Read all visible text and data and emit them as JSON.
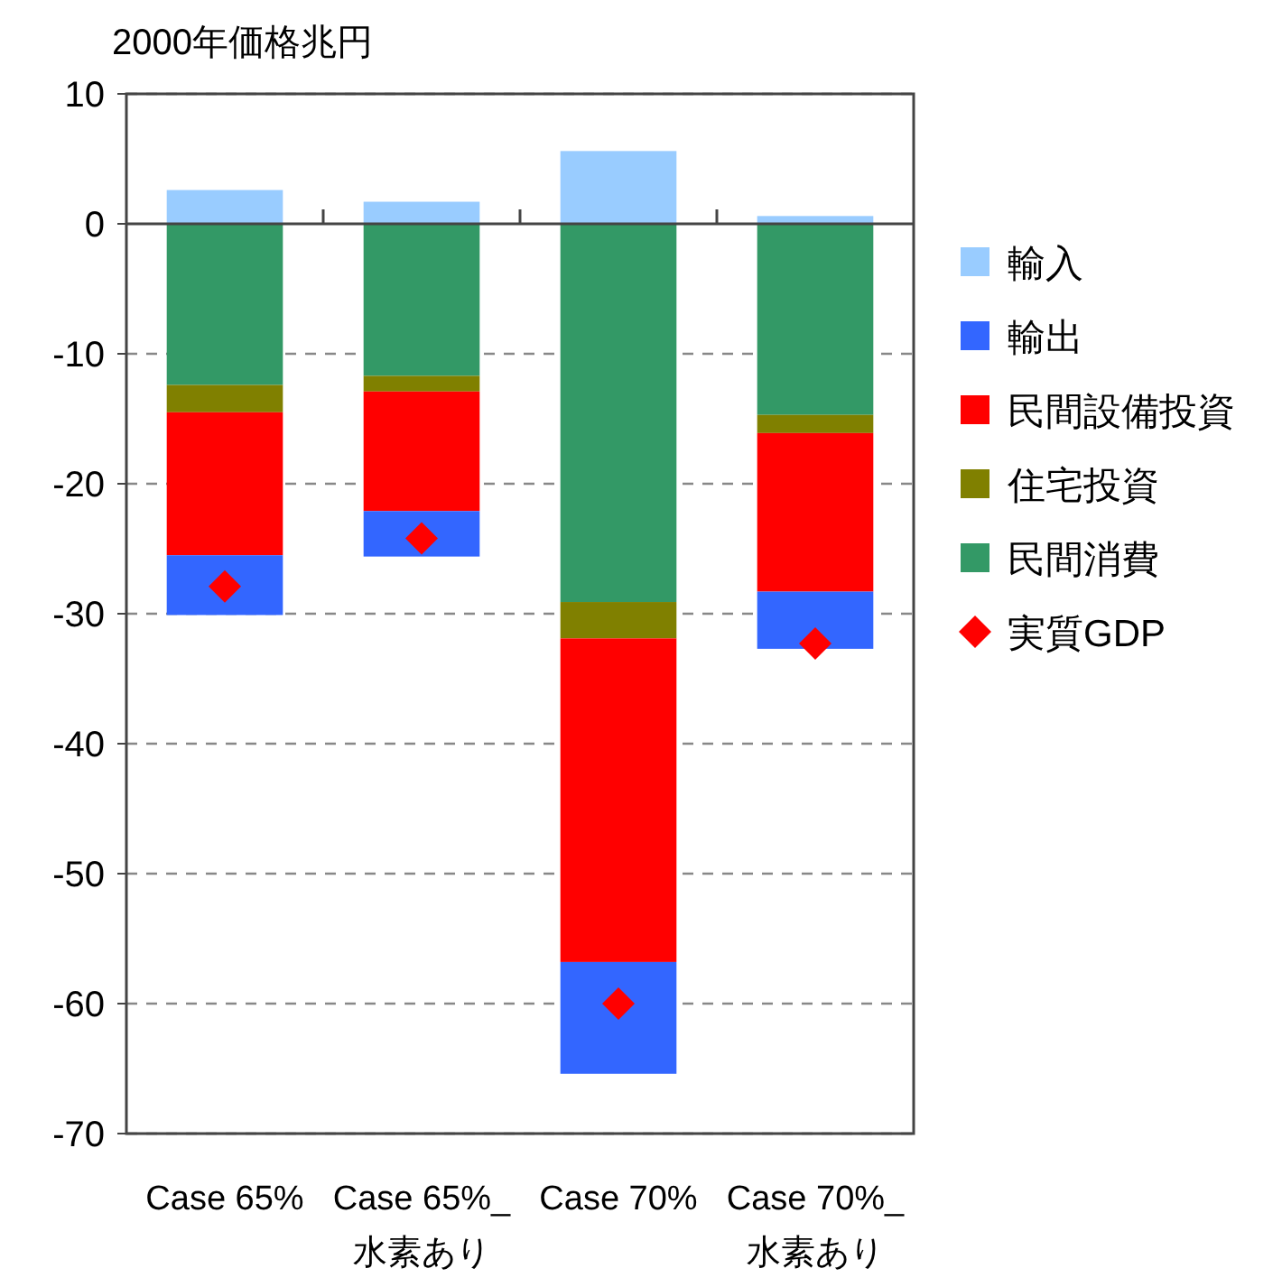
{
  "chart_data": {
    "type": "bar",
    "stacked": true,
    "ylabel": "2000年価格兆円",
    "categories": [
      "Case 65%",
      "Case 65%_\n水素あり",
      "Case 70%",
      "Case 70%_\n水素あり"
    ],
    "series": [
      {
        "name": "民間消費",
        "color": "#339966",
        "values": [
          -12.4,
          -11.7,
          -29.1,
          -14.7
        ]
      },
      {
        "name": "住宅投資",
        "color": "#808000",
        "values": [
          -2.1,
          -1.2,
          -2.8,
          -1.4
        ]
      },
      {
        "name": "民間設備投資",
        "color": "#ff0000",
        "values": [
          -11.0,
          -9.2,
          -24.9,
          -12.2
        ]
      },
      {
        "name": "輸出",
        "color": "#3366ff",
        "values": [
          -4.6,
          -3.5,
          -8.6,
          -4.4
        ]
      },
      {
        "name": "輸入",
        "color": "#99ccff",
        "values": [
          2.6,
          1.7,
          5.6,
          0.6
        ]
      },
      {
        "name": "実質GDP",
        "type": "scatter",
        "marker": "diamond",
        "color": "#ff0000",
        "values": [
          -27.9,
          -24.2,
          -60.0,
          -32.3
        ]
      }
    ],
    "ylim": [
      -70,
      10
    ],
    "yticks": [
      10,
      0,
      -10,
      -20,
      -30,
      -40,
      -50,
      -60,
      -70
    ],
    "grid": "y",
    "legend": "right"
  }
}
